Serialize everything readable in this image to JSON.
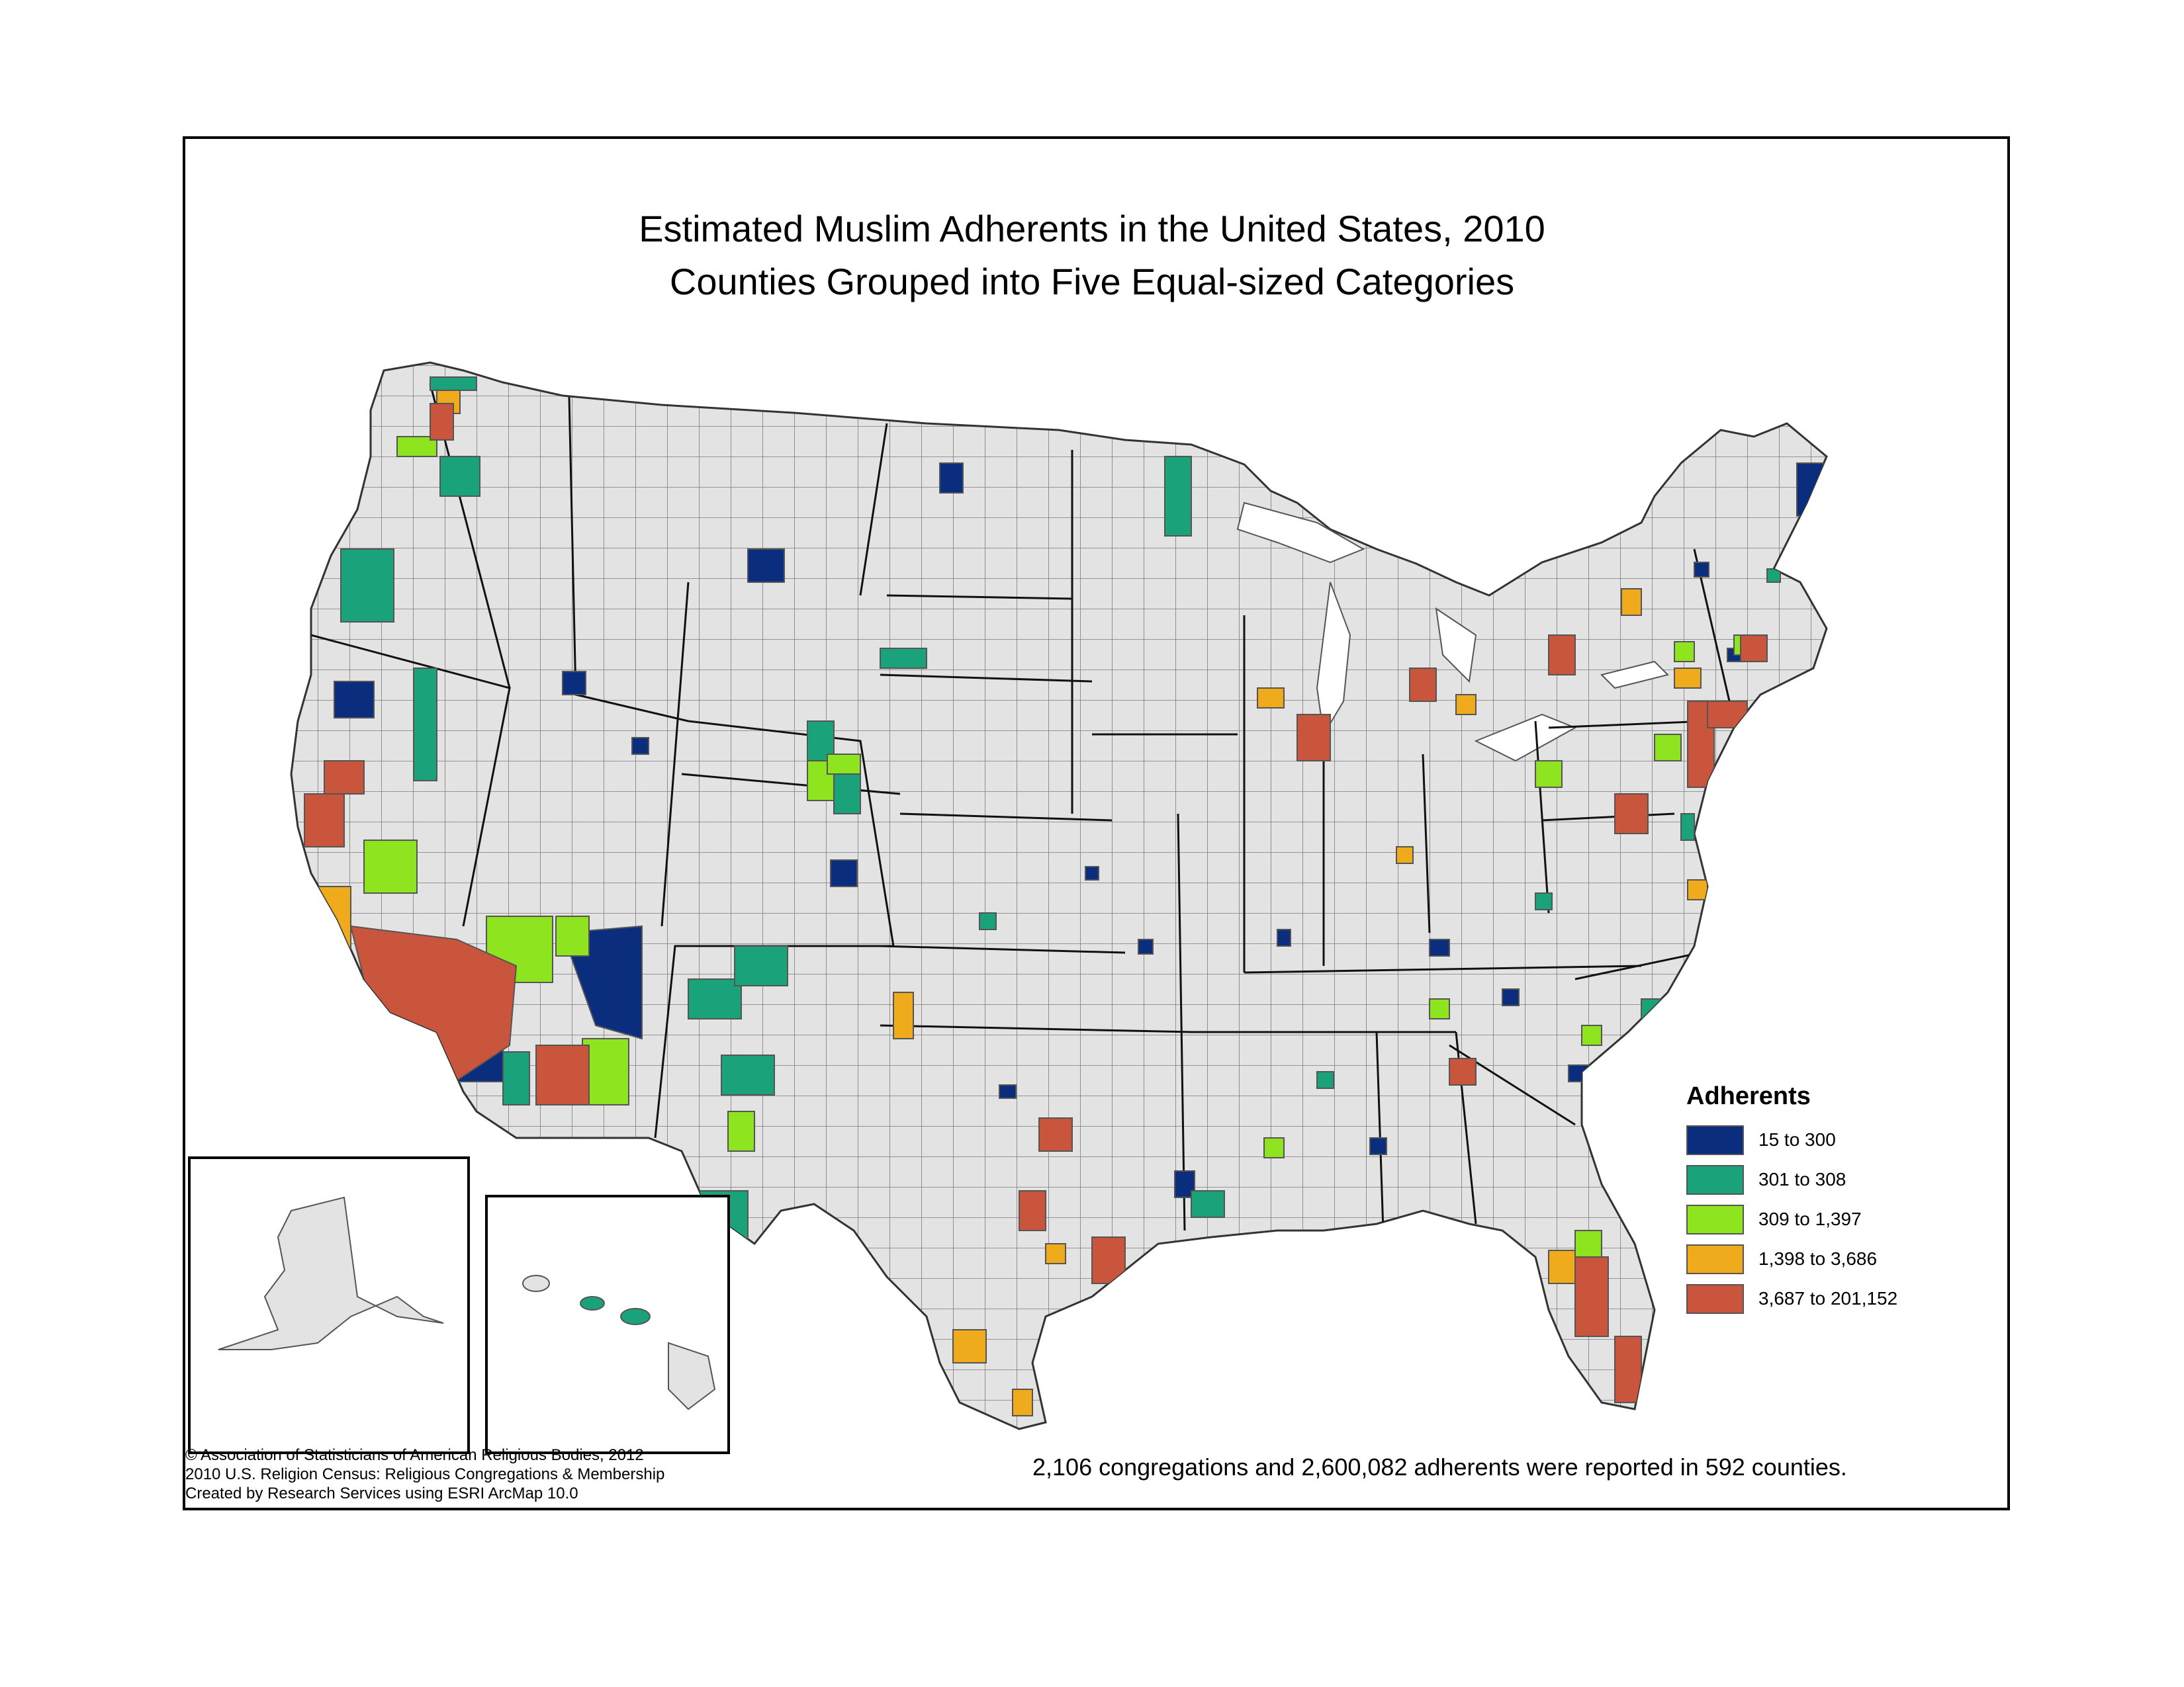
{
  "title_line1": "Estimated Muslim Adherents in the United States, 2010",
  "title_line2": "Counties Grouped into Five Equal-sized Categories",
  "legend": {
    "title": "Adherents",
    "classes": [
      {
        "label": "15 to 300",
        "color": "#0a2d7e"
      },
      {
        "label": "301 to 308",
        "color": "#1aa37a"
      },
      {
        "label": "309 to 1,397",
        "color": "#8ee51f"
      },
      {
        "label": "1,398 to 3,686",
        "color": "#f0ab1c"
      },
      {
        "label": "3,687 to 201,152",
        "color": "#c9553d"
      }
    ]
  },
  "summary": "2,106 congregations and 2,600,082 adherents were reported in 592 counties.",
  "credits": [
    "© Association of Statisticians of American Religious Bodies, 2012",
    "2010 U.S. Religion Census: Religious Congregations & Membership",
    "Created by Research Services using ESRI ArcMap 10.0"
  ],
  "colors": {
    "no_data": "#e3e3e3",
    "border": "#5a5a5a"
  }
}
